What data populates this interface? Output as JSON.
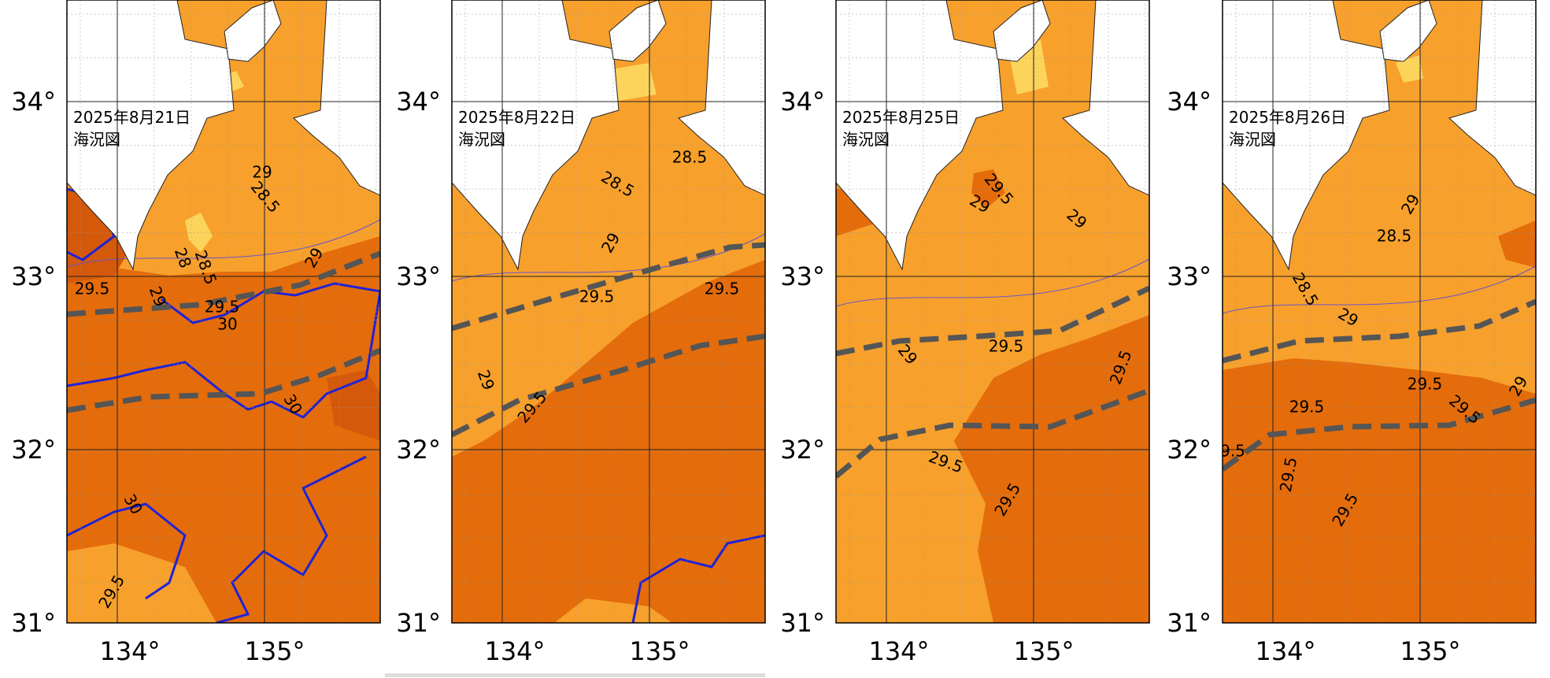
{
  "panels": [
    {
      "date": "2025年8月21日",
      "caption": "海況図",
      "lat_labels": [
        "34°",
        "33°",
        "32°",
        "31°"
      ],
      "lon_labels": [
        "134°",
        "135°"
      ],
      "contour_labels": [
        "29",
        "28.5",
        "28.5",
        "28",
        "29",
        "29.5",
        "29",
        "29.5",
        "30",
        "30",
        "30",
        "29.5"
      ]
    },
    {
      "date": "2025年8月22日",
      "caption": "海況図",
      "lat_labels": [
        "34°",
        "33°",
        "32°",
        "31°"
      ],
      "lon_labels": [
        "134°",
        "135°"
      ],
      "contour_labels": [
        "28.5",
        "28.5",
        "29",
        "29.5",
        "29.5",
        "29",
        "29.5"
      ]
    },
    {
      "date": "2025年8月25日",
      "caption": "海況図",
      "lat_labels": [
        "34°",
        "33°",
        "32°",
        "31°"
      ],
      "lon_labels": [
        "134°",
        "135°"
      ],
      "contour_labels": [
        "29.5",
        "29",
        "29",
        "29.5",
        "29",
        "29.5",
        "29.5",
        "29.5"
      ]
    },
    {
      "date": "2025年8月26日",
      "caption": "海況図",
      "lat_labels": [
        "34°",
        "33°",
        "32°",
        "31°"
      ],
      "lon_labels": [
        "134°",
        "135°"
      ],
      "contour_labels": [
        "29",
        "28.5",
        "28.5",
        "29",
        "29.5",
        "29.5",
        "29.5",
        "29",
        "29.5",
        "29.5",
        "9.5"
      ]
    }
  ]
}
